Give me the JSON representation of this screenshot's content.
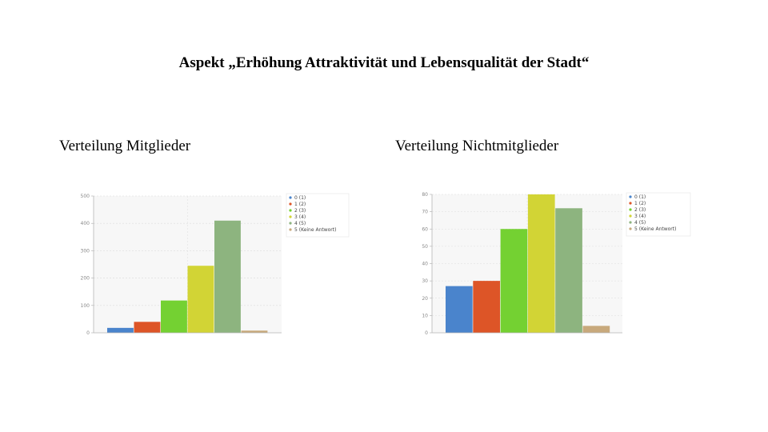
{
  "slide": {
    "title": "Aspekt „Erhöhung Attraktivität und Lebensqualität der Stadt“"
  },
  "chart_data": [
    {
      "type": "bar",
      "title": "Verteilung Mitglieder",
      "categories": [
        "0 (1)",
        "1 (2)",
        "2 (3)",
        "3 (4)",
        "4 (5)",
        "5 (Keine Antwort)"
      ],
      "values": [
        18,
        40,
        118,
        245,
        410,
        8
      ],
      "colors": [
        "#4a84cc",
        "#dd5527",
        "#74d132",
        "#d2d435",
        "#8db47f",
        "#c8a97c"
      ],
      "ylim": [
        0,
        500
      ],
      "yticks": [
        0,
        100,
        200,
        300,
        400,
        500
      ],
      "ytick_labels": [
        "0",
        "100",
        "200",
        "300",
        "400",
        "500"
      ],
      "legend_position": "right",
      "xlabel": "",
      "ylabel": ""
    },
    {
      "type": "bar",
      "title": "Verteilung Nichtmitglieder",
      "categories": [
        "0 (1)",
        "1 (2)",
        "2 (3)",
        "3 (4)",
        "4 (5)",
        "5 (Keine Antwort)"
      ],
      "values": [
        27,
        30,
        60,
        80,
        72,
        4
      ],
      "colors": [
        "#4a84cc",
        "#dd5527",
        "#74d132",
        "#d2d435",
        "#8db47f",
        "#c8a97c"
      ],
      "ylim": [
        0,
        80
      ],
      "yticks": [
        0,
        10,
        20,
        30,
        40,
        50,
        60,
        70,
        80
      ],
      "ytick_labels": [
        "0",
        "10",
        "20",
        "30",
        "40",
        "50",
        "60",
        "70",
        "80"
      ],
      "legend_position": "right",
      "xlabel": "",
      "ylabel": ""
    }
  ]
}
